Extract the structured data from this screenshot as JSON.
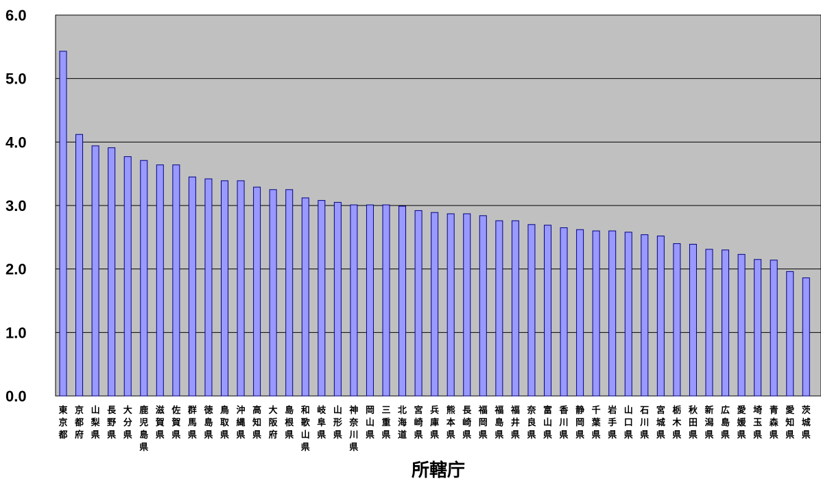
{
  "chart_data": {
    "type": "bar",
    "title": "",
    "xlabel": "所轄庁",
    "ylabel": "",
    "ylim": [
      0,
      6
    ],
    "yticks": [
      "0.0",
      "1.0",
      "2.0",
      "3.0",
      "4.0",
      "5.0",
      "6.0"
    ],
    "grid": true,
    "colors": {
      "plot_bg": "#c0c0c0",
      "bar_fill": "#9999ff",
      "bar_stroke": "#000080",
      "grid": "#000000"
    },
    "categories": [
      "東京都",
      "京都府",
      "山梨県",
      "長野県",
      "大分県",
      "鹿児島県",
      "滋賀県",
      "佐賀県",
      "群馬県",
      "徳島県",
      "鳥取県",
      "沖縄県",
      "高知県",
      "大阪府",
      "島根県",
      "和歌山県",
      "岐阜県",
      "山形県",
      "神奈川県",
      "岡山県",
      "三重県",
      "北海道",
      "宮崎県",
      "兵庫県",
      "熊本県",
      "長崎県",
      "福岡県",
      "福島県",
      "福井県",
      "奈良県",
      "富山県",
      "香川県",
      "静岡県",
      "千葉県",
      "岩手県",
      "山口県",
      "石川県",
      "宮城県",
      "栃木県",
      "秋田県",
      "新潟県",
      "広島県",
      "愛媛県",
      "埼玉県",
      "青森県",
      "愛知県",
      "茨城県"
    ],
    "values": [
      5.43,
      4.12,
      3.94,
      3.91,
      3.77,
      3.71,
      3.64,
      3.64,
      3.45,
      3.42,
      3.39,
      3.39,
      3.29,
      3.25,
      3.25,
      3.12,
      3.08,
      3.05,
      3.01,
      3.01,
      3.01,
      2.99,
      2.92,
      2.89,
      2.87,
      2.87,
      2.84,
      2.76,
      2.76,
      2.7,
      2.69,
      2.65,
      2.62,
      2.6,
      2.6,
      2.58,
      2.54,
      2.52,
      2.4,
      2.39,
      2.31,
      2.3,
      2.23,
      2.15,
      2.14,
      1.96,
      1.86
    ]
  }
}
